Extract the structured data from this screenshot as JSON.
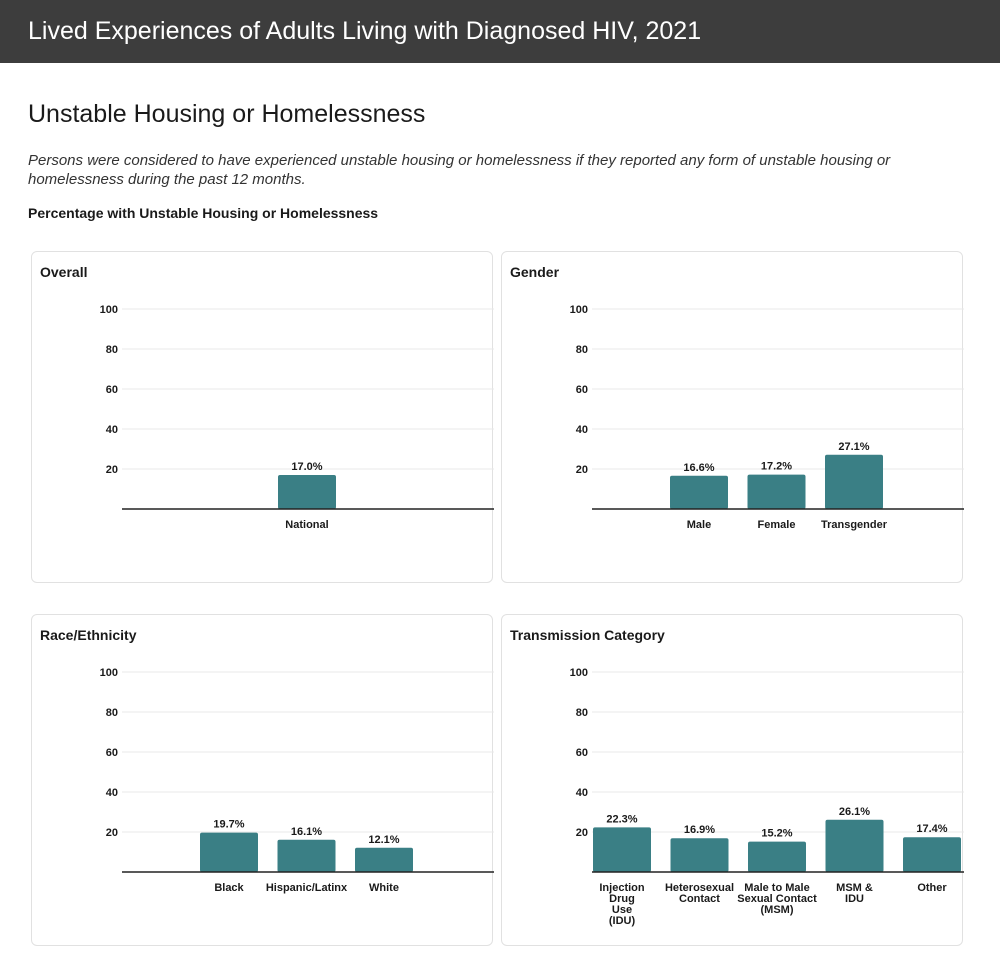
{
  "header": {
    "title": "Lived Experiences of Adults Living with Diagnosed HIV, 2021"
  },
  "section": {
    "title": "Unstable Housing or Homelessness",
    "description": "Persons were considered to have experienced unstable housing or homelessness if they reported any form of unstable housing or homelessness during the past 12 months.",
    "subheading": "Percentage with Unstable Housing or Homelessness"
  },
  "colors": {
    "bar": "#3a7f85",
    "grid": "#e9e9e9",
    "baseline": "#222222",
    "banner": "#3d3d3d"
  },
  "chart_data": [
    {
      "type": "bar",
      "title": "Overall",
      "categories": [
        [
          "National"
        ]
      ],
      "values": [
        17.0
      ],
      "labels": [
        "17.0%"
      ],
      "ylim": [
        0,
        100
      ],
      "yticks": [
        20,
        40,
        60,
        80,
        100
      ],
      "grid": true,
      "xlabel": "",
      "ylabel": ""
    },
    {
      "type": "bar",
      "title": "Gender",
      "categories": [
        [
          "Male"
        ],
        [
          "Female"
        ],
        [
          "Transgender"
        ]
      ],
      "values": [
        16.6,
        17.2,
        27.1
      ],
      "labels": [
        "16.6%",
        "17.2%",
        "27.1%"
      ],
      "ylim": [
        0,
        100
      ],
      "yticks": [
        20,
        40,
        60,
        80,
        100
      ],
      "grid": true,
      "xlabel": "",
      "ylabel": ""
    },
    {
      "type": "bar",
      "title": "Race/Ethnicity",
      "categories": [
        [
          "Black"
        ],
        [
          "Hispanic/Latinx"
        ],
        [
          "White"
        ]
      ],
      "values": [
        19.7,
        16.1,
        12.1
      ],
      "labels": [
        "19.7%",
        "16.1%",
        "12.1%"
      ],
      "ylim": [
        0,
        100
      ],
      "yticks": [
        20,
        40,
        60,
        80,
        100
      ],
      "grid": true,
      "xlabel": "",
      "ylabel": ""
    },
    {
      "type": "bar",
      "title": "Transmission Category",
      "categories": [
        [
          "Injection",
          "Drug",
          "Use",
          "(IDU)"
        ],
        [
          "Heterosexual",
          "Contact"
        ],
        [
          "Male to Male",
          "Sexual Contact",
          "(MSM)"
        ],
        [
          "MSM &",
          "IDU"
        ],
        [
          "Other"
        ]
      ],
      "values": [
        22.3,
        16.9,
        15.2,
        26.1,
        17.4
      ],
      "labels": [
        "22.3%",
        "16.9%",
        "15.2%",
        "26.1%",
        "17.4%"
      ],
      "ylim": [
        0,
        100
      ],
      "yticks": [
        20,
        40,
        60,
        80,
        100
      ],
      "grid": true,
      "xlabel": "",
      "ylabel": ""
    }
  ]
}
